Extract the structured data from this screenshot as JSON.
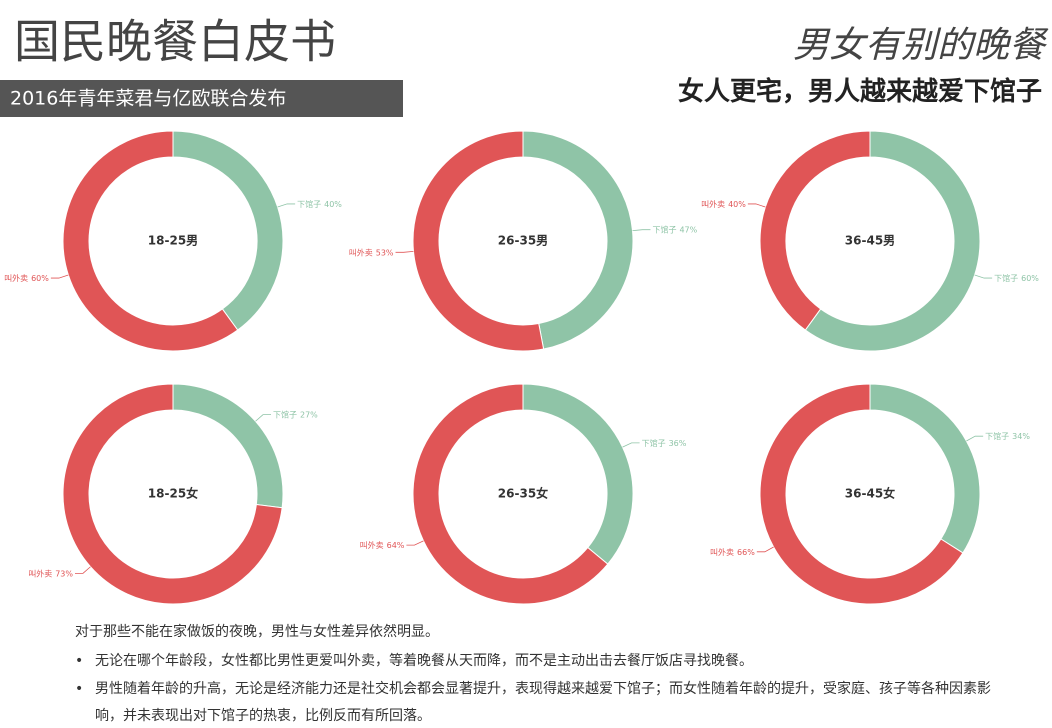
{
  "header": {
    "title": "国民晚餐白皮书",
    "subtitle": "2016年青年菜君与亿欧联合发布",
    "headline": "男女有别的晚餐",
    "tagline": "女人更宅，男人越来越爱下馆子"
  },
  "chart_data": [
    {
      "type": "pie",
      "title": "18-25男",
      "categories": [
        "下馆子",
        "叫外卖"
      ],
      "values": [
        40,
        60
      ],
      "value_labels": [
        "40%",
        "60%"
      ],
      "colors": [
        "#8fc4a7",
        "#e05556"
      ]
    },
    {
      "type": "pie",
      "title": "26-35男",
      "categories": [
        "下馆子",
        "叫外卖"
      ],
      "values": [
        47,
        53
      ],
      "value_labels": [
        "47%",
        "53%"
      ],
      "colors": [
        "#8fc4a7",
        "#e05556"
      ]
    },
    {
      "type": "pie",
      "title": "36-45男",
      "categories": [
        "下馆子",
        "叫外卖"
      ],
      "values": [
        60,
        40
      ],
      "value_labels": [
        "60%",
        "40%"
      ],
      "colors": [
        "#8fc4a7",
        "#e05556"
      ]
    },
    {
      "type": "pie",
      "title": "18-25女",
      "categories": [
        "下馆子",
        "叫外卖"
      ],
      "values": [
        27,
        73
      ],
      "value_labels": [
        "27%",
        "73%"
      ],
      "colors": [
        "#8fc4a7",
        "#e05556"
      ]
    },
    {
      "type": "pie",
      "title": "26-35女",
      "categories": [
        "下馆子",
        "叫外卖"
      ],
      "values": [
        36,
        64
      ],
      "value_labels": [
        "36%",
        "64%"
      ],
      "colors": [
        "#8fc4a7",
        "#e05556"
      ]
    },
    {
      "type": "pie",
      "title": "36-45女",
      "categories": [
        "下馆子",
        "叫外卖"
      ],
      "values": [
        34,
        66
      ],
      "value_labels": [
        "34%",
        "66%"
      ],
      "colors": [
        "#8fc4a7",
        "#e05556"
      ]
    }
  ],
  "notes": {
    "intro": "对于那些不能在家做饭的夜晚，男性与女性差异依然明显。",
    "bullets": [
      "无论在哪个年龄段，女性都比男性更爱叫外卖，等着晚餐从天而降，而不是主动出击去餐厅饭店寻找晚餐。",
      "男性随着年龄的升高，无论是经济能力还是社交机会都会显著提升，表现得越来越爱下馆子；而女性随着年龄的提升，受家庭、孩子等各种因素影响，并未表现出对下馆子的热衷，比例反而有所回落。"
    ]
  }
}
